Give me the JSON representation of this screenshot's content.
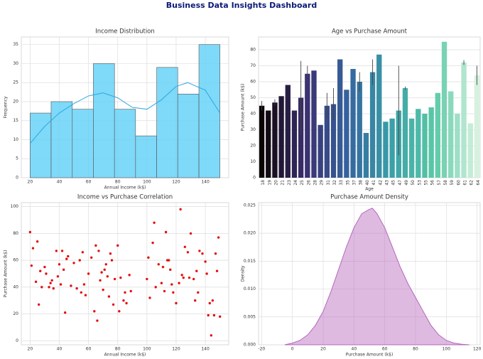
{
  "title": "Business Data Insights Dashboard",
  "chart_data": [
    {
      "type": "histogram",
      "title": "Income Distribution",
      "xlabel": "Annual Income (k$)",
      "ylabel": "Frequency",
      "bins": [
        20,
        34.4,
        48.9,
        63.3,
        77.8,
        92.2,
        106.7,
        121.1,
        135.6,
        150
      ],
      "values": [
        17,
        20,
        18,
        30,
        18,
        11,
        29,
        22,
        35
      ],
      "color": "#5fd0f7",
      "kde": {
        "color": "#2fa8e0",
        "x": [
          20,
          30,
          40,
          50,
          60,
          70,
          80,
          90,
          100,
          110,
          120,
          128,
          140,
          150
        ],
        "y": [
          9,
          13.5,
          17,
          19.5,
          21.5,
          22.3,
          21,
          18.5,
          18,
          20.5,
          24,
          25,
          23,
          17
        ]
      },
      "xlim": [
        14,
        156
      ],
      "ylim": [
        0,
        37
      ],
      "xticks": [
        20,
        40,
        60,
        80,
        100,
        120,
        140
      ],
      "yticks": [
        0,
        5,
        10,
        15,
        20,
        25,
        30,
        35
      ],
      "grid": true
    },
    {
      "type": "bar",
      "title": "Age vs Purchase Amount",
      "xlabel": "Age",
      "ylabel": "Purchase Amount (k$)",
      "categories": [
        "18",
        "19",
        "20",
        "21",
        "23",
        "24",
        "25",
        "26",
        "28",
        "29",
        "31",
        "32",
        "33",
        "35",
        "37",
        "38",
        "40",
        "41",
        "42",
        "43",
        "45",
        "47",
        "49",
        "50",
        "53",
        "55",
        "56",
        "57",
        "58",
        "59",
        "60",
        "61",
        "62",
        "64"
      ],
      "values": [
        45,
        42,
        47,
        51,
        58,
        42,
        50,
        65,
        67,
        33,
        45,
        46,
        74,
        55,
        68,
        60,
        28,
        66,
        77,
        35,
        37,
        42,
        56,
        37,
        43,
        40,
        44,
        53,
        85,
        54,
        40,
        72,
        34,
        64
      ],
      "errors": [
        3,
        null,
        2,
        null,
        null,
        null,
        23,
        5,
        null,
        null,
        8,
        10,
        null,
        null,
        null,
        6,
        null,
        8,
        null,
        null,
        null,
        28,
        1,
        null,
        null,
        null,
        null,
        null,
        null,
        null,
        null,
        1.5,
        null,
        6
      ],
      "palette": [
        "#0b0405",
        "#3b2f6f",
        "#35649e",
        "#3a9fa8",
        "#5ac8a6",
        "#d6f2df"
      ],
      "ylim": [
        0,
        88
      ],
      "yticks": [
        0,
        10,
        20,
        30,
        40,
        50,
        60,
        70,
        80
      ],
      "grid": true
    },
    {
      "type": "scatter",
      "title": "Income vs Purchase Correlation",
      "xlabel": "Annual Income (k$)",
      "ylabel": "Purchase Amount (k$)",
      "color": "#e3100f",
      "x": [
        20,
        21,
        22,
        24,
        25,
        26,
        27,
        28,
        30,
        31,
        33,
        34,
        35,
        36,
        38,
        39,
        40,
        41,
        42,
        43,
        44,
        45,
        46,
        48,
        50,
        52,
        54,
        55,
        56,
        57,
        58,
        60,
        62,
        64,
        65,
        66,
        67,
        68,
        69,
        70,
        71,
        72,
        73,
        74,
        75,
        76,
        77,
        78,
        80,
        81,
        82,
        84,
        85,
        86,
        88,
        89,
        100,
        101,
        102,
        104,
        105,
        106,
        108,
        110,
        111,
        112,
        113,
        114,
        115,
        116,
        117,
        118,
        120,
        122,
        123,
        124,
        125,
        126,
        128,
        129,
        130,
        132,
        133,
        134,
        135,
        136,
        138,
        140,
        141,
        142,
        143,
        144,
        145,
        146,
        147,
        148,
        149,
        150
      ],
      "y": [
        81,
        56,
        69,
        44,
        74,
        27,
        52,
        40,
        55,
        50,
        40,
        43,
        45,
        39,
        67,
        48,
        57,
        42,
        67,
        53,
        21,
        61,
        63,
        41,
        58,
        39,
        60,
        36,
        66,
        42,
        34,
        50,
        62,
        22,
        71,
        15,
        67,
        45,
        51,
        38,
        53,
        57,
        48,
        33,
        65,
        60,
        27,
        46,
        71,
        22,
        47,
        30,
        36,
        28,
        49,
        37,
        46,
        62,
        32,
        73,
        88,
        40,
        57,
        43,
        55,
        37,
        81,
        60,
        60,
        53,
        42,
        36,
        28,
        43,
        98,
        49,
        47,
        70,
        66,
        47,
        80,
        46,
        30,
        52,
        36,
        67,
        65,
        59,
        50,
        19,
        28,
        4,
        30,
        19,
        65,
        52,
        77,
        18
      ],
      "xlim": [
        14,
        156
      ],
      "ylim": [
        -3,
        103
      ],
      "xticks": [
        20,
        40,
        60,
        80,
        100,
        120,
        140
      ],
      "yticks": [
        0,
        20,
        40,
        60,
        80,
        100
      ],
      "grid": true
    },
    {
      "type": "area",
      "title": "Purchase Amount Density",
      "xlabel": "Purchase Amount (k$)",
      "ylabel": "Density",
      "color": "#b565bd",
      "x": [
        -5,
        0,
        5,
        10,
        15,
        20,
        25,
        30,
        35,
        40,
        45,
        50,
        52,
        55,
        60,
        65,
        70,
        75,
        80,
        85,
        90,
        95,
        100,
        105,
        110,
        115
      ],
      "y": [
        0,
        0.0003,
        0.0008,
        0.0018,
        0.0035,
        0.006,
        0.0095,
        0.0135,
        0.0175,
        0.021,
        0.0235,
        0.0243,
        0.0245,
        0.0235,
        0.021,
        0.0175,
        0.014,
        0.011,
        0.0085,
        0.006,
        0.0035,
        0.0018,
        0.0008,
        0.0003,
        0.0001,
        0
      ],
      "xlim": [
        -22,
        122
      ],
      "ylim": [
        0,
        0.0255
      ],
      "xticks": [
        -20,
        0,
        20,
        40,
        60,
        80,
        100,
        120
      ],
      "yticks": [
        {
          "value": 0,
          "label": "0.000"
        },
        {
          "value": 0.005,
          "label": "0.005"
        },
        {
          "value": 0.01,
          "label": "0.010"
        },
        {
          "value": 0.015,
          "label": "0.015"
        },
        {
          "value": 0.02,
          "label": "0.020"
        },
        {
          "value": 0.025,
          "label": "0.025"
        }
      ],
      "grid": true
    }
  ]
}
